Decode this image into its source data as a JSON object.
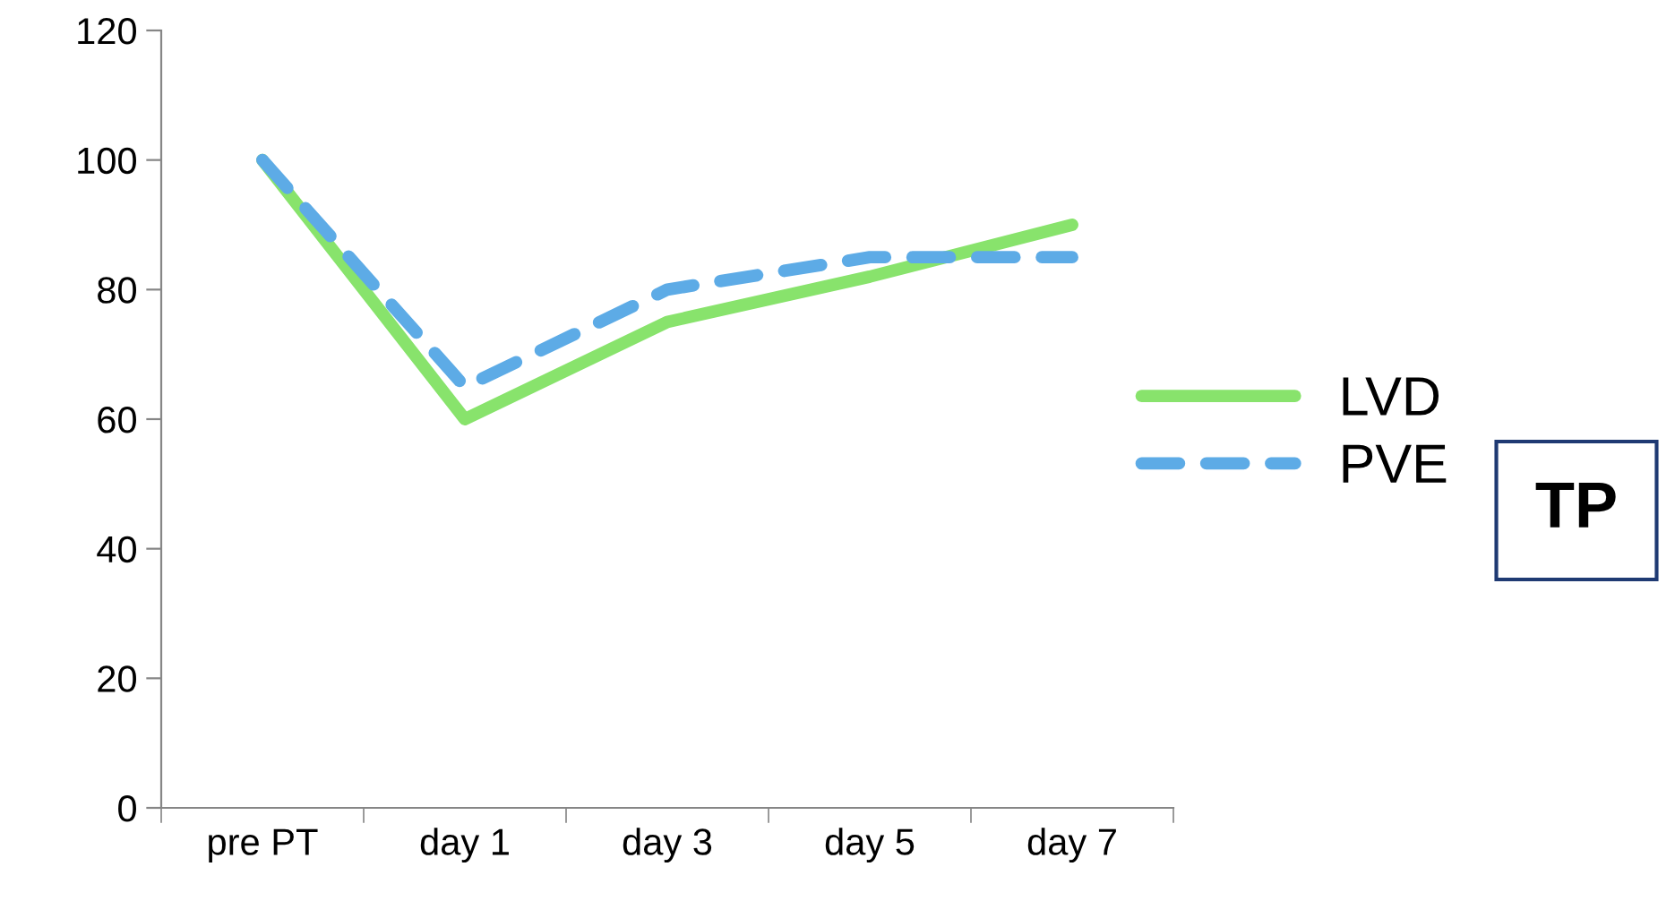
{
  "chart_data": {
    "type": "line",
    "categories": [
      "pre PT",
      "day 1",
      "day 3",
      "day 5",
      "day 7"
    ],
    "series": [
      {
        "name": "LVD",
        "color": "#88e36c",
        "values": [
          100,
          60,
          75,
          82,
          90
        ],
        "line_style": "solid"
      },
      {
        "name": "PVE",
        "color": "#5dabe6",
        "values": [
          100,
          65,
          80,
          85,
          85
        ],
        "line_style": "dashed"
      }
    ],
    "ylim": [
      0,
      120
    ],
    "yticks": [
      0,
      20,
      40,
      60,
      80,
      100,
      120
    ],
    "grid": false,
    "legend": "right",
    "marker": "none",
    "annotations": [
      "TP"
    ]
  }
}
